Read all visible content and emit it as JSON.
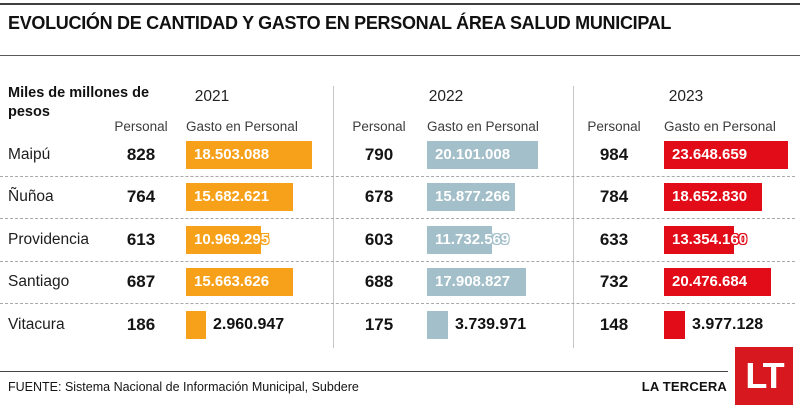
{
  "header": {
    "title": "EVOLUCIÓN DE CANTIDAD Y GASTO EN PERSONAL ÁREA SALUD MUNICIPAL",
    "unit_label": "Miles de millones de pesos"
  },
  "columns": {
    "personal": "Personal",
    "gasto": "Gasto en Personal"
  },
  "chart_data": {
    "type": "bar",
    "title": "EVOLUCIÓN DE CANTIDAD Y GASTO EN PERSONAL ÁREA SALUD MUNICIPAL",
    "unit": "Miles de millones de pesos",
    "categories": [
      "Maipú",
      "Ñuñoa",
      "Providencia",
      "Santiago",
      "Vitacura"
    ],
    "series": [
      {
        "year": "2021",
        "color": "#f7a11b",
        "personal": [
          828,
          764,
          613,
          687,
          186
        ],
        "gasto_display": [
          "18.503.088",
          "15.682.621",
          "10.969.295",
          "15.663.626",
          "2.960.947"
        ],
        "gasto_values": [
          18503088,
          15682621,
          10969295,
          15663626,
          2960947
        ]
      },
      {
        "year": "2022",
        "color": "#a3bfc9",
        "personal": [
          790,
          678,
          603,
          688,
          175
        ],
        "gasto_display": [
          "20.101.008",
          "15.877.266",
          "11.732.569",
          "17.908.827",
          "3.739.971"
        ],
        "gasto_values": [
          20101008,
          15877266,
          11732569,
          17908827,
          3739971
        ]
      },
      {
        "year": "2023",
        "color": "#e20c18",
        "personal": [
          984,
          784,
          633,
          732,
          148
        ],
        "gasto_display": [
          "23.648.659",
          "18.652.830",
          "13.354.160",
          "20.476.684",
          "3.977.128"
        ],
        "gasto_values": [
          23648659,
          18652830,
          13354160,
          20476684,
          3977128
        ]
      }
    ],
    "legend_position": "none",
    "grid": "dashed-row-separators"
  },
  "footer": {
    "source": "FUENTE: Sistema Nacional de Información Municipal, Subdere",
    "brand": "LA TERCERA",
    "logo_text": "LT",
    "logo_color": "#d7191f"
  }
}
